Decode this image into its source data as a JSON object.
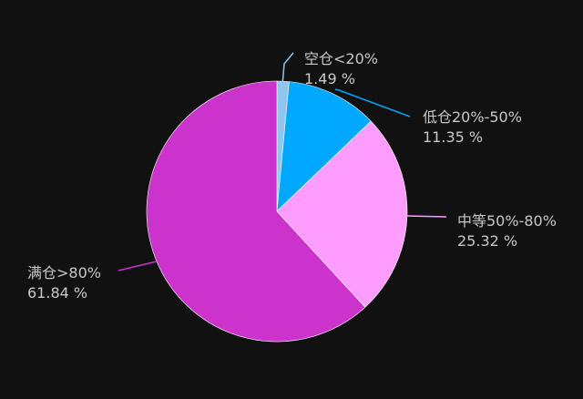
{
  "chart_data": {
    "type": "pie",
    "slices": [
      {
        "name": "空仓<20%",
        "value": 1.49,
        "label": "1.49 %",
        "color": "#8ec6f0"
      },
      {
        "name": "低仓20%-50%",
        "value": 11.35,
        "label": "11.35 %",
        "color": "#00a8ff"
      },
      {
        "name": "中等50%-80%",
        "value": 25.32,
        "label": "25.32 %",
        "color": "#ff9cff"
      },
      {
        "name": "满仓>80%",
        "value": 61.84,
        "label": "61.84 %",
        "color": "#cc33cc"
      }
    ],
    "start_angle": "12 o'clock",
    "direction": "clockwise",
    "background": "#111111",
    "label_color": "#c8c8c8"
  }
}
